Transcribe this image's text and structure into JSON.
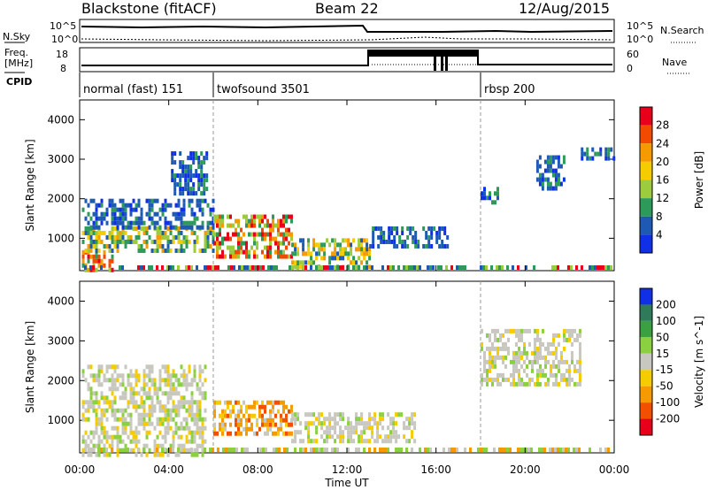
{
  "header": {
    "station": "Blackstone (fitACF)",
    "beam": "Beam 22",
    "date": "12/Aug/2015"
  },
  "summary_panels": {
    "left_labels": [
      "N.Sky",
      "Freq.",
      "[MHz]",
      "CPID"
    ],
    "right_labels": [
      "N.Search",
      "Nave"
    ],
    "nsky_ticks": [
      "10^5",
      "10^0"
    ],
    "nsearch_ticks": [
      "10^5",
      "10^0"
    ],
    "freq_ticks": [
      "18",
      "8"
    ],
    "nave_ticks": [
      "60",
      "0"
    ],
    "cpid_segments": [
      {
        "label": "normal (fast) 151",
        "start_hr": 0,
        "end_hr": 6
      },
      {
        "label": "twofsound 3501",
        "start_hr": 6,
        "end_hr": 18
      },
      {
        "label": "rbsp 200",
        "start_hr": 18,
        "end_hr": 24
      }
    ]
  },
  "chart_data": [
    {
      "type": "heatmap",
      "name": "power-panel",
      "ylabel": "Slant Range [km]",
      "xlabel": "",
      "xlim": [
        0,
        24
      ],
      "ylim": [
        180,
        4500
      ],
      "yticks": [
        1000,
        2000,
        3000,
        4000
      ],
      "colorbar": {
        "label": "Power [dB]",
        "ticks": [
          "28",
          "24",
          "20",
          "16",
          "12",
          "8",
          "4"
        ],
        "colors": [
          "#e8001a",
          "#f24a00",
          "#f59a00",
          "#f5cc00",
          "#9ccc3d",
          "#2e9a5a",
          "#1e5ab4",
          "#1030e8"
        ]
      },
      "regions": [
        {
          "x": [
            0.1,
            1.5
          ],
          "y": [
            180,
            700
          ],
          "level": "high"
        },
        {
          "x": [
            0.1,
            6.0
          ],
          "y": [
            700,
            1300
          ],
          "level": "medium"
        },
        {
          "x": [
            0.1,
            6.0
          ],
          "y": [
            1300,
            2000
          ],
          "level": "low"
        },
        {
          "x": [
            4.1,
            5.7
          ],
          "y": [
            2100,
            3200
          ],
          "level": "low"
        },
        {
          "x": [
            6.0,
            9.5
          ],
          "y": [
            500,
            1600
          ],
          "level": "high"
        },
        {
          "x": [
            9.5,
            13.0
          ],
          "y": [
            300,
            1000
          ],
          "level": "medium"
        },
        {
          "x": [
            13.0,
            16.5
          ],
          "y": [
            800,
            1300
          ],
          "level": "low"
        },
        {
          "x": [
            18.0,
            18.8
          ],
          "y": [
            1900,
            2300
          ],
          "level": "low"
        },
        {
          "x": [
            20.5,
            21.8
          ],
          "y": [
            2300,
            3100
          ],
          "level": "low"
        },
        {
          "x": [
            22.5,
            24.0
          ],
          "y": [
            3000,
            3300
          ],
          "level": "low"
        }
      ]
    },
    {
      "type": "heatmap",
      "name": "velocity-panel",
      "ylabel": "Slant Range [km]",
      "xlabel": "Time UT",
      "xlim": [
        0,
        24
      ],
      "ylim": [
        180,
        4500
      ],
      "yticks": [
        1000,
        2000,
        3000,
        4000
      ],
      "xticks": [
        "00:00",
        "04:00",
        "08:00",
        "12:00",
        "16:00",
        "20:00",
        "00:00"
      ],
      "colorbar": {
        "label": "Velocity [m s^-1]",
        "ticks": [
          "200",
          "100",
          "50",
          "15",
          "-15",
          "-50",
          "-100",
          "-200"
        ],
        "colors": [
          "#1030e8",
          "#2e7a5a",
          "#3aa040",
          "#8ad040",
          "#c8c8c0",
          "#f5cc00",
          "#f59a00",
          "#f25000",
          "#e8001a"
        ]
      },
      "regions": [
        {
          "x": [
            0.1,
            5.7
          ],
          "y": [
            180,
            1300
          ],
          "level": "ground"
        },
        {
          "x": [
            0.1,
            5.7
          ],
          "y": [
            1300,
            2400
          ],
          "level": "ground"
        },
        {
          "x": [
            6.0,
            9.5
          ],
          "y": [
            700,
            1500
          ],
          "level": "orange"
        },
        {
          "x": [
            9.5,
            15.0
          ],
          "y": [
            500,
            1200
          ],
          "level": "ground"
        },
        {
          "x": [
            18.0,
            22.5
          ],
          "y": [
            1900,
            3300
          ],
          "level": "ground"
        }
      ]
    }
  ]
}
